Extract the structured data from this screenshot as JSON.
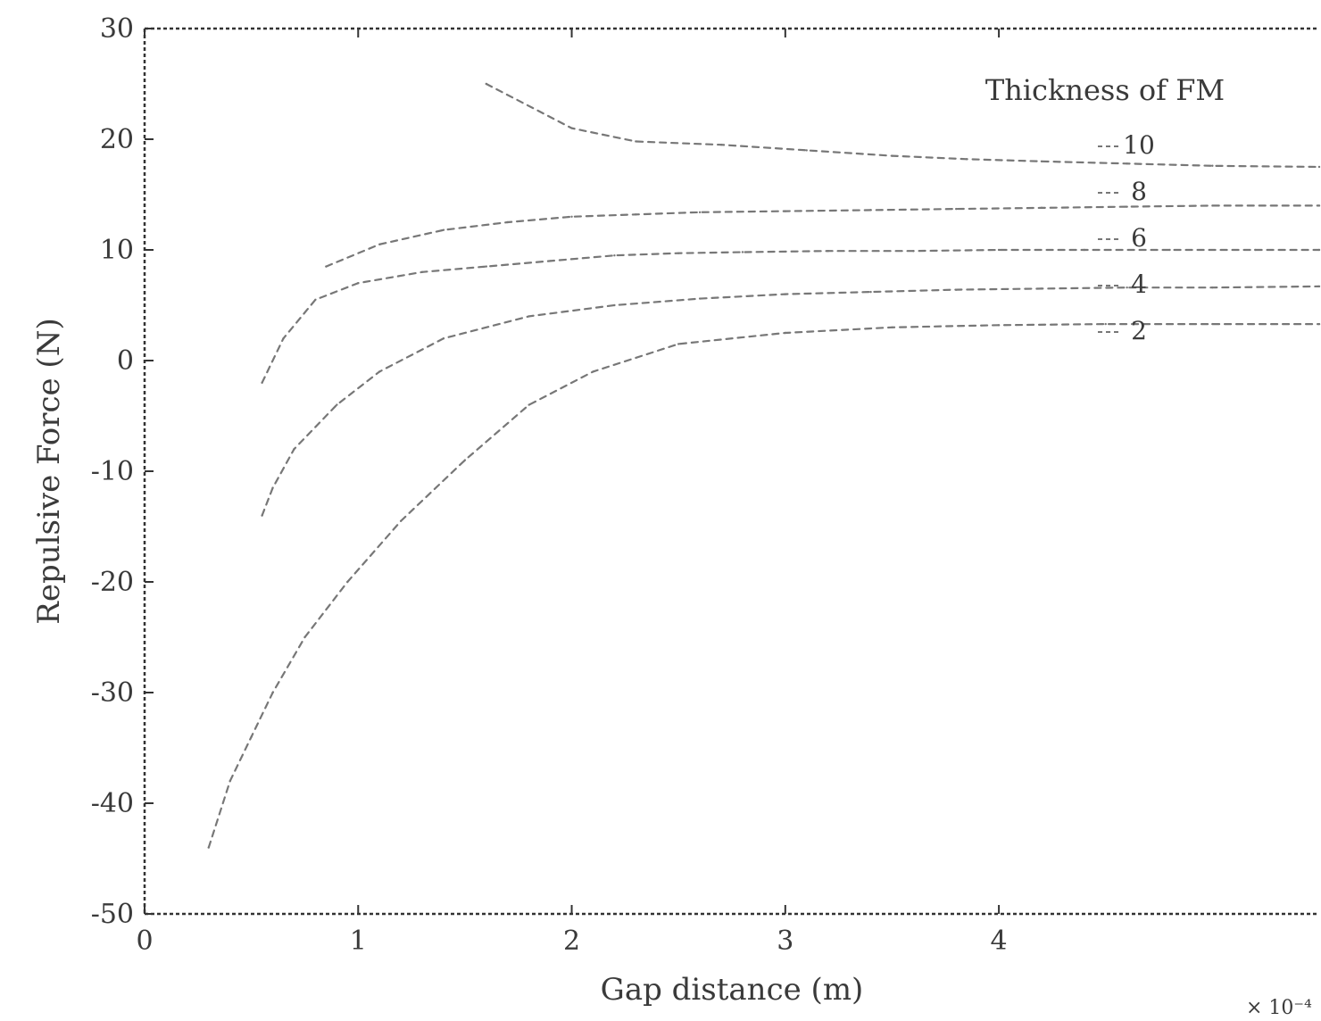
{
  "chart_data": {
    "type": "line",
    "title": "",
    "xlabel": "Gap distance (m)",
    "ylabel": "Repulsive Force (N)",
    "x_multiplier": "× 10⁻⁴",
    "xlim": [
      0,
      5.5
    ],
    "ylim": [
      -50,
      30
    ],
    "x_ticks": [
      "0",
      "1",
      "2",
      "3",
      "4"
    ],
    "y_ticks": [
      "30",
      "20",
      "10",
      "0",
      "-10",
      "-20",
      "-30",
      "-40",
      "-50"
    ],
    "grid": false,
    "legend": {
      "title": "Thickness of FM",
      "placement": "top-right",
      "entries": [
        "10",
        "8",
        "6",
        "4",
        "2"
      ]
    },
    "series": [
      {
        "name": "10",
        "color": "#777777",
        "x": [
          1.6,
          2.0,
          2.3,
          2.7,
          3.1,
          3.5,
          3.85,
          4.2,
          4.6,
          5.0,
          5.5
        ],
        "y": [
          25,
          21,
          19.8,
          19.5,
          19.0,
          18.5,
          18.2,
          18.0,
          17.8,
          17.6,
          17.5
        ]
      },
      {
        "name": "8",
        "color": "#777777",
        "x": [
          0.85,
          1.1,
          1.4,
          1.7,
          2.0,
          2.3,
          2.6,
          3.0,
          3.4,
          3.8,
          4.2,
          4.6,
          5.0,
          5.5
        ],
        "y": [
          8.5,
          10.5,
          11.8,
          12.5,
          13.0,
          13.2,
          13.4,
          13.5,
          13.6,
          13.7,
          13.8,
          13.9,
          14.0,
          14.0
        ]
      },
      {
        "name": "6",
        "color": "#777777",
        "x": [
          0.55,
          0.65,
          0.8,
          1.0,
          1.3,
          1.6,
          1.9,
          2.2,
          2.5,
          2.8,
          3.2,
          3.6,
          4.0,
          4.4,
          4.8,
          5.2,
          5.5
        ],
        "y": [
          -2.0,
          2.0,
          5.5,
          7.0,
          8.0,
          8.5,
          9.0,
          9.5,
          9.7,
          9.8,
          9.9,
          9.9,
          10.0,
          10.0,
          10.0,
          10.0,
          10.0
        ]
      },
      {
        "name": "4",
        "color": "#777777",
        "x": [
          0.55,
          0.6,
          0.7,
          0.9,
          1.1,
          1.4,
          1.8,
          2.2,
          2.6,
          3.0,
          3.4,
          3.8,
          4.2,
          4.6,
          5.0,
          5.5
        ],
        "y": [
          -14.0,
          -11.5,
          -8.0,
          -4.0,
          -1.0,
          2.0,
          4.0,
          5.0,
          5.6,
          6.0,
          6.2,
          6.4,
          6.5,
          6.6,
          6.6,
          6.7
        ]
      },
      {
        "name": "2",
        "color": "#777777",
        "x": [
          0.3,
          0.4,
          0.5,
          0.6,
          0.75,
          0.95,
          1.2,
          1.5,
          1.8,
          2.1,
          2.5,
          3.0,
          3.5,
          4.0,
          4.5,
          5.0,
          5.5
        ],
        "y": [
          -44.0,
          -38.0,
          -34.0,
          -30.0,
          -25.0,
          -20.0,
          -14.5,
          -9.0,
          -4.0,
          -1.0,
          1.5,
          2.5,
          3.0,
          3.2,
          3.3,
          3.3,
          3.3
        ]
      }
    ]
  }
}
